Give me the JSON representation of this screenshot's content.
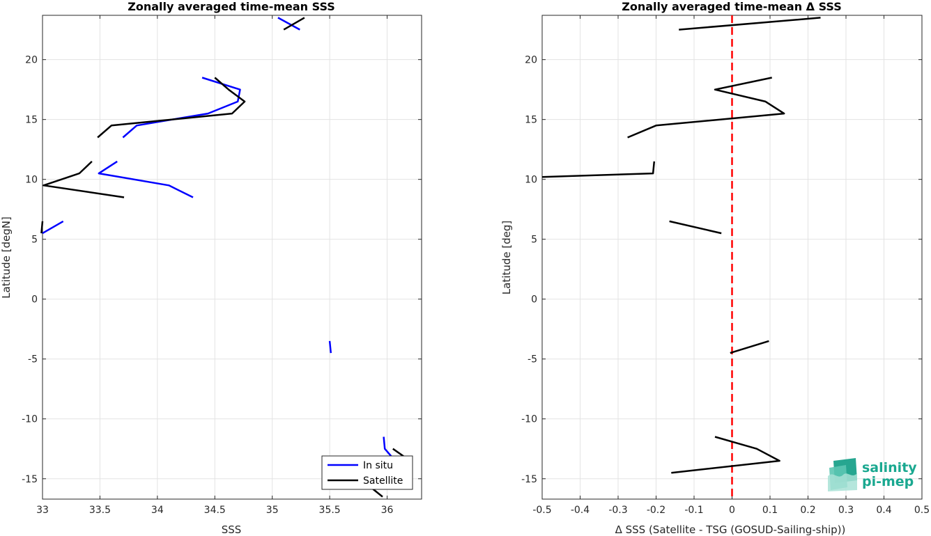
{
  "chart_data": [
    {
      "type": "line",
      "title": "Zonally averaged time-mean SSS",
      "xlabel": "SSS",
      "ylabel": "Latitude [degN]",
      "xlim": [
        33,
        36.3
      ],
      "ylim": [
        -16.7,
        23.7
      ],
      "xticks": [
        33,
        33.5,
        34,
        34.5,
        35,
        35.5,
        36
      ],
      "xtick_labels": [
        "33",
        "33.5",
        "34",
        "34.5",
        "35",
        "35.5",
        "36"
      ],
      "yticks": [
        -15,
        -10,
        -5,
        0,
        5,
        10,
        15,
        20
      ],
      "ytick_labels": [
        "-15",
        "-10",
        "-5",
        "0",
        "5",
        "10",
        "15",
        "20"
      ],
      "grid": true,
      "legend_position": "bottom-right",
      "series": [
        {
          "name": "In situ",
          "color": "#0000ff",
          "segments": [
            [
              [
                35.05,
                23.5
              ],
              [
                35.24,
                22.5
              ]
            ],
            [
              [
                34.39,
                18.5
              ],
              [
                34.72,
                17.5
              ],
              [
                34.7,
                16.5
              ],
              [
                34.44,
                15.5
              ],
              [
                33.82,
                14.5
              ],
              [
                33.7,
                13.5
              ]
            ],
            [
              [
                33.65,
                11.5
              ],
              [
                33.49,
                10.5
              ],
              [
                34.1,
                9.5
              ],
              [
                34.31,
                8.5
              ]
            ],
            [
              [
                33.18,
                6.5
              ],
              [
                33.0,
                5.5
              ]
            ],
            [
              [
                35.5,
                -3.5
              ],
              [
                35.51,
                -4.5
              ]
            ],
            [
              [
                35.97,
                -11.5
              ],
              [
                35.98,
                -12.5
              ],
              [
                36.07,
                -13.5
              ]
            ]
          ]
        },
        {
          "name": "Satellite",
          "color": "#000000",
          "segments": [
            [
              [
                35.28,
                23.5
              ],
              [
                35.1,
                22.5
              ]
            ],
            [
              [
                34.5,
                18.5
              ],
              [
                34.62,
                17.5
              ],
              [
                34.76,
                16.5
              ],
              [
                34.65,
                15.5
              ],
              [
                33.6,
                14.5
              ],
              [
                33.48,
                13.5
              ]
            ],
            [
              [
                33.43,
                11.5
              ],
              [
                33.32,
                10.5
              ],
              [
                33.01,
                9.5
              ],
              [
                33.71,
                8.5
              ]
            ],
            [
              [
                33.0,
                6.5
              ],
              [
                32.99,
                5.5
              ]
            ],
            [
              [
                36.05,
                -12.5
              ],
              [
                36.2,
                -13.5
              ]
            ],
            [
              [
                35.83,
                -15.5
              ],
              [
                35.96,
                -16.5
              ]
            ]
          ]
        }
      ]
    },
    {
      "type": "line",
      "title": "Zonally averaged time-mean Δ SSS",
      "xlabel": "Δ SSS (Satellite - TSG (GOSUD-Sailing-ship))",
      "ylabel": "Latitude [deg]",
      "xlim": [
        -0.5,
        0.5
      ],
      "ylim": [
        -16.7,
        23.7
      ],
      "xticks": [
        -0.5,
        -0.4,
        -0.3,
        -0.2,
        -0.1,
        0,
        0.1,
        0.2,
        0.3,
        0.4,
        0.5
      ],
      "xtick_labels": [
        "-0.5",
        "-0.4",
        "-0.3",
        "-0.2",
        "-0.1",
        "0",
        "0.1",
        "0.2",
        "0.3",
        "0.4",
        "0.5"
      ],
      "yticks": [
        -15,
        -10,
        -5,
        0,
        5,
        10,
        15,
        20
      ],
      "ytick_labels": [
        "-15",
        "-10",
        "-5",
        "0",
        "5",
        "10",
        "15",
        "20"
      ],
      "grid": true,
      "reference_line": {
        "x": 0,
        "color": "#ff0000",
        "style": "dashed"
      },
      "series": [
        {
          "color": "#000000",
          "segments": [
            [
              [
                0.233,
                23.5
              ],
              [
                -0.14,
                22.5
              ]
            ],
            [
              [
                0.105,
                18.5
              ],
              [
                -0.045,
                17.5
              ],
              [
                0.088,
                16.5
              ],
              [
                0.137,
                15.5
              ],
              [
                -0.2,
                14.5
              ],
              [
                -0.275,
                13.5
              ]
            ],
            [
              [
                -0.205,
                11.5
              ],
              [
                -0.208,
                10.5
              ],
              [
                -0.5,
                10.2
              ]
            ],
            [
              [
                -0.165,
                6.5
              ],
              [
                -0.028,
                5.5
              ]
            ],
            [
              [
                0.097,
                -3.5
              ],
              [
                -0.005,
                -4.5
              ]
            ],
            [
              [
                -0.045,
                -11.5
              ],
              [
                0.065,
                -12.5
              ],
              [
                0.125,
                -13.5
              ],
              [
                -0.16,
                -14.5
              ]
            ]
          ]
        }
      ]
    }
  ],
  "legend": {
    "items": [
      "In situ",
      "Satellite"
    ]
  },
  "logo": {
    "line1": "salinity",
    "line2": "pi-mep",
    "color": "#1aa890"
  }
}
